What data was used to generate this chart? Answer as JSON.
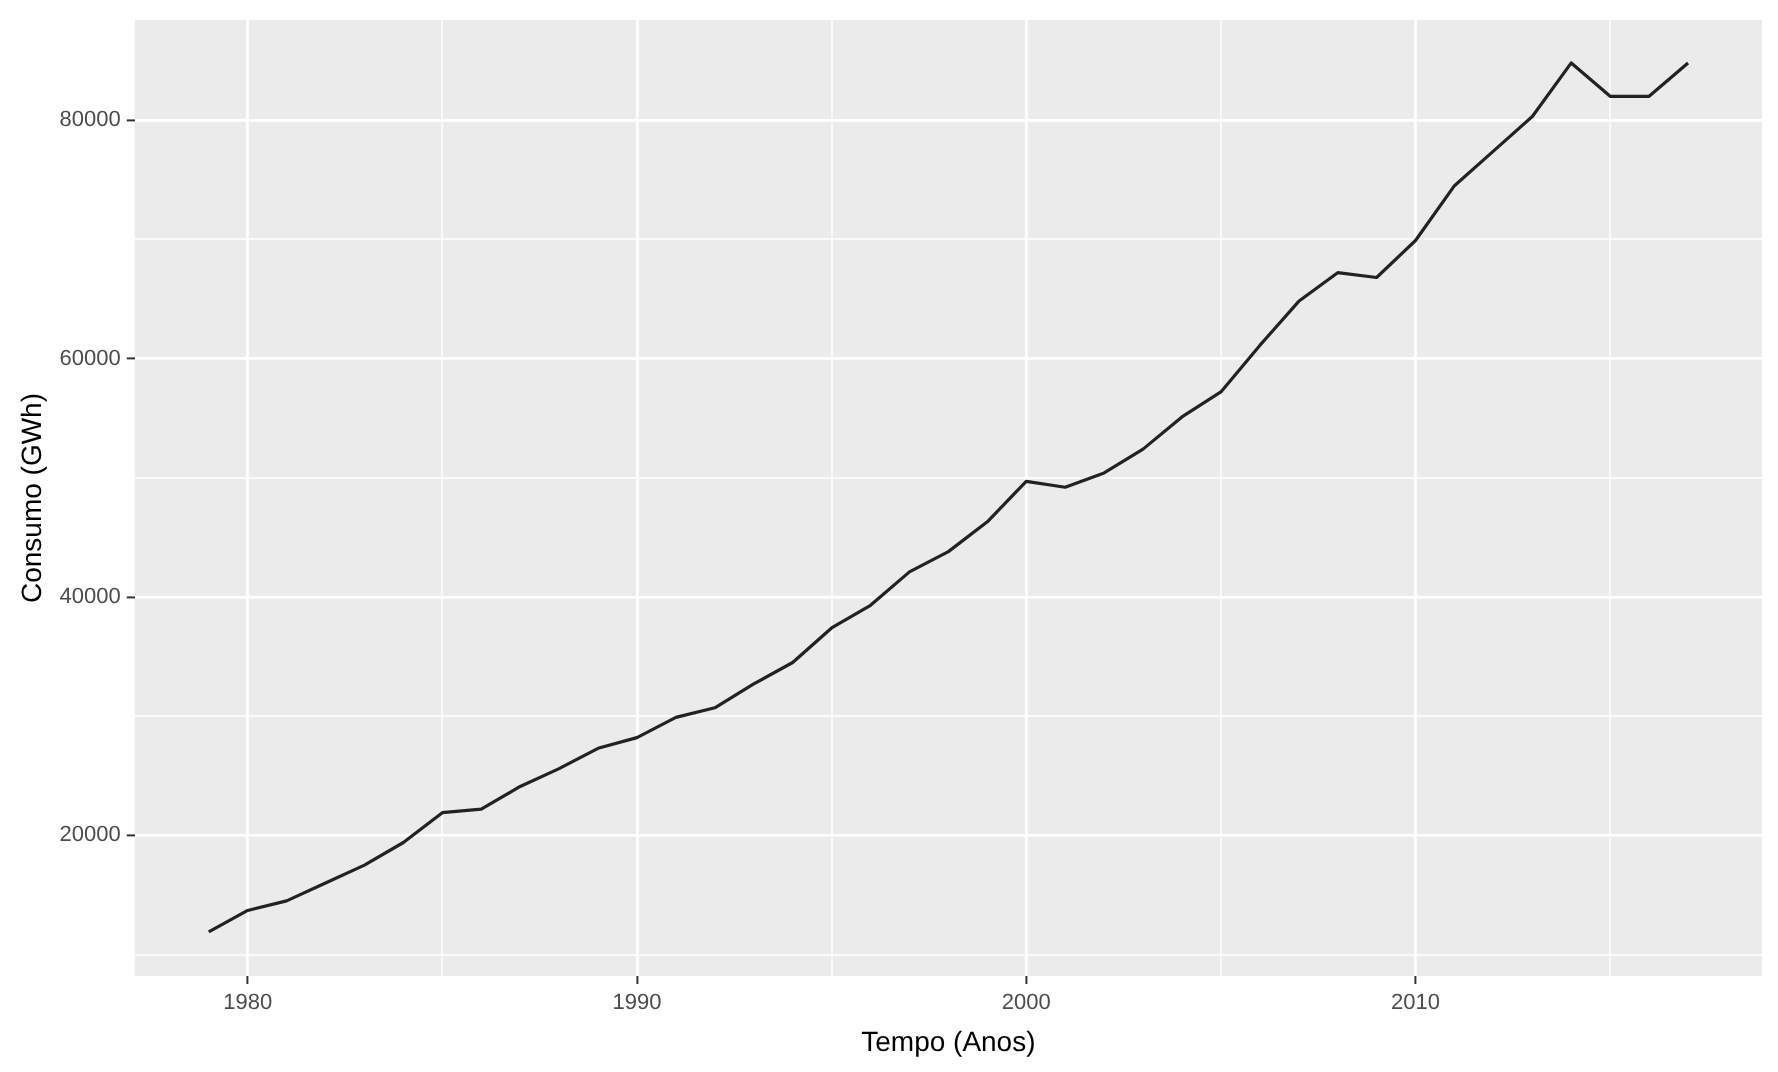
{
  "chart_data": {
    "type": "line",
    "xlabel": "Tempo (Anos)",
    "ylabel": "Consumo (GWh)",
    "x": [
      1979,
      1980,
      1981,
      1982,
      1983,
      1984,
      1985,
      1986,
      1987,
      1988,
      1989,
      1990,
      1991,
      1992,
      1993,
      1994,
      1995,
      1996,
      1997,
      1998,
      1999,
      2000,
      2001,
      2002,
      2003,
      2004,
      2005,
      2006,
      2007,
      2008,
      2009,
      2010,
      2011,
      2012,
      2013,
      2014,
      2015,
      2016,
      2017
    ],
    "series": [
      {
        "color": "#222222",
        "values": [
          11900,
          13700,
          14500,
          16000,
          17500,
          19400,
          21900,
          22200,
          24100,
          25600,
          27300,
          28200,
          29900,
          30700,
          32700,
          34500,
          37400,
          39300,
          42100,
          43800,
          46300,
          49700,
          49200,
          50400,
          52400,
          55100,
          57200,
          61100,
          64800,
          67200,
          66800,
          69900,
          74500,
          77400,
          80300,
          84800,
          82000,
          82000,
          84800
        ]
      }
    ],
    "xlim": [
      1977.1,
      2018.9
    ],
    "xticks": [
      1980,
      {
        "value": 1985,
        "label": null
      },
      1990,
      {
        "value": 1995,
        "label": null
      },
      2000,
      {
        "value": 2005,
        "label": null
      },
      2010,
      {
        "value": 2015,
        "label": null
      }
    ],
    "ylim": [
      8200,
      88400
    ],
    "yticks": [
      {
        "value": 10000,
        "label": null
      },
      20000,
      {
        "value": 30000,
        "label": null
      },
      40000,
      {
        "value": 50000,
        "label": null
      },
      60000,
      {
        "value": 70000,
        "label": null
      },
      80000
    ],
    "grid": true,
    "legend": false,
    "marker": "none",
    "line_style": "solid"
  }
}
